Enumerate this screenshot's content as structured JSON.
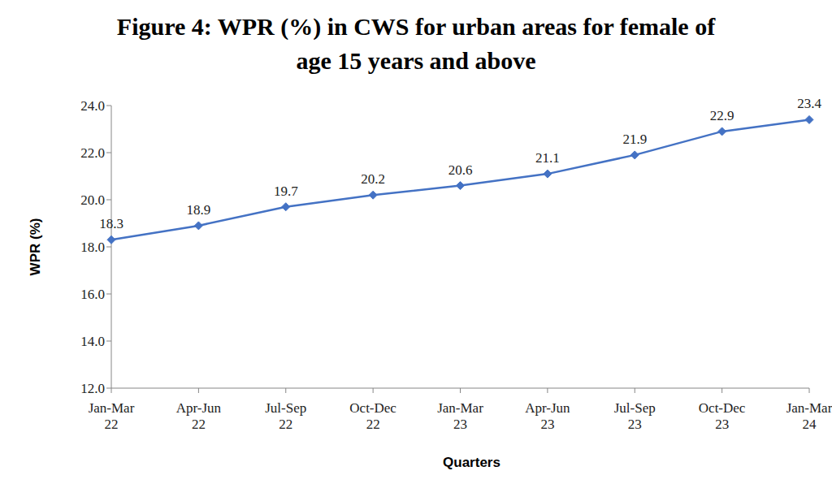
{
  "chart_data": {
    "type": "line",
    "title": "Figure 4: WPR (%) in CWS for urban areas for female of age 15 years and above",
    "x_label": "Quarters",
    "y_label": "WPR (%)",
    "categories": [
      "Jan-Mar 22",
      "Apr-Jun 22",
      "Jul-Sep 22",
      "Oct-Dec 22",
      "Jan-Mar 23",
      "Apr-Jun 23",
      "Jul-Sep 23",
      "Oct-Dec 23",
      "Jan-Mar 24"
    ],
    "values": [
      18.3,
      18.9,
      19.7,
      20.2,
      20.6,
      21.1,
      21.9,
      22.9,
      23.4
    ],
    "color": "#4472c4",
    "marker": "diamond",
    "ylim": [
      12,
      24
    ],
    "yticks": [
      {
        "value": 12,
        "label": "12.0"
      },
      {
        "value": 14,
        "label": "14.0"
      },
      {
        "value": 16,
        "label": "16.0"
      },
      {
        "value": 18,
        "label": "18.0"
      },
      {
        "value": 20,
        "label": "20.0"
      },
      {
        "value": 22,
        "label": "22.0"
      },
      {
        "value": 24,
        "label": "24.0"
      }
    ],
    "grid": false,
    "data_labels": true
  }
}
